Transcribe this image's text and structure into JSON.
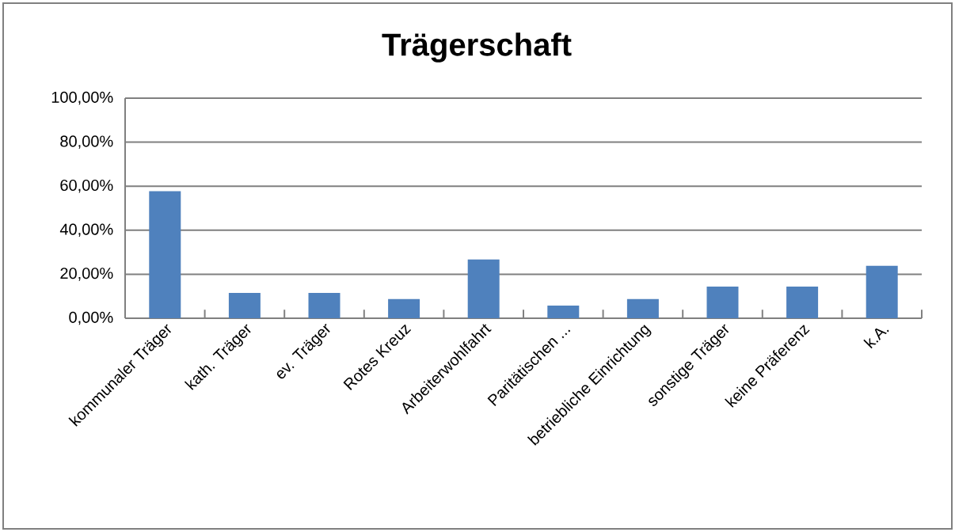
{
  "chart_data": {
    "type": "bar",
    "title": "Trägerschaft",
    "categories": [
      "kommunaler Träger",
      "kath. Träger",
      "ev. Träger",
      "Rotes Kreuz",
      "Arbeiterwohlfahrt",
      "Paritätischen ...",
      "betriebliche Einrichtung",
      "sonstige Träger",
      "keine Präferenz",
      "k.A."
    ],
    "values": [
      57.7,
      11.5,
      11.5,
      8.7,
      26.7,
      5.8,
      8.7,
      14.4,
      14.4,
      23.8
    ],
    "color": "#4f81bd",
    "ylim": [
      0,
      100
    ],
    "yticks": [
      {
        "value": 0,
        "label": "0,00%"
      },
      {
        "value": 20,
        "label": "20,00%"
      },
      {
        "value": 40,
        "label": "40,00%"
      },
      {
        "value": 60,
        "label": "60,00%"
      },
      {
        "value": 80,
        "label": "80,00%"
      },
      {
        "value": 100,
        "label": "100,00%"
      }
    ],
    "grid": "y"
  }
}
